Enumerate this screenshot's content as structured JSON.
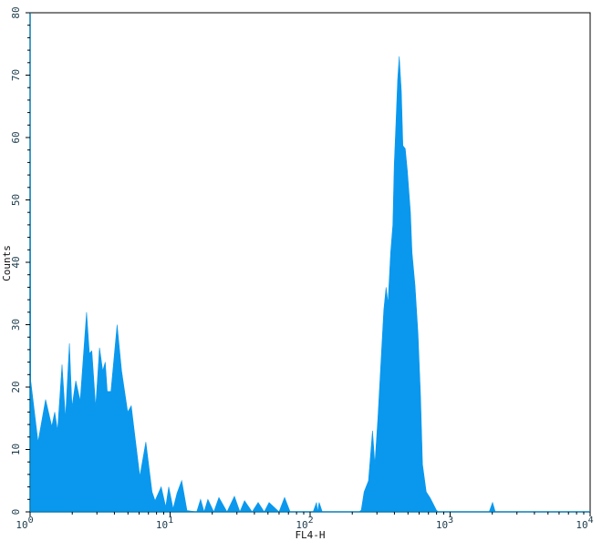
{
  "chart_data": {
    "type": "area",
    "title": "",
    "xlabel": "FL4-H",
    "ylabel": "Counts",
    "x_scale": "log",
    "xlim": [
      1,
      10000
    ],
    "ylim": [
      0,
      80
    ],
    "x_ticks": [
      {
        "base": "10",
        "exp": "0",
        "value": 1
      },
      {
        "base": "10",
        "exp": "1",
        "value": 10
      },
      {
        "base": "10",
        "exp": "2",
        "value": 100
      },
      {
        "base": "10",
        "exp": "3",
        "value": 1000
      },
      {
        "base": "10",
        "exp": "4",
        "value": 10000
      }
    ],
    "y_ticks": [
      "0",
      "10",
      "20",
      "30",
      "40",
      "50",
      "60",
      "70",
      "80"
    ],
    "grid": false,
    "fill_color": "#0a98ee",
    "series": [
      {
        "x": [
          1.0,
          1.0,
          1.01,
          1.14,
          1.29,
          1.43,
          1.5,
          1.57,
          1.69,
          1.79,
          1.91,
          1.99,
          2.12,
          2.28,
          2.53,
          2.65,
          2.76,
          2.94,
          3.13,
          3.3,
          3.44,
          3.56,
          3.78,
          4.18,
          4.5,
          4.98,
          5.28,
          5.55,
          6.08,
          6.71,
          7.43,
          7.81,
          8.63,
          9.31,
          9.78,
          10.5,
          11.2,
          12.1,
          13.2,
          15.5,
          16.5,
          17.5,
          18.6,
          20.5,
          22.3,
          25.5,
          28.8,
          31.5,
          34.0,
          38.5,
          42.5,
          47.0,
          50.9,
          60.0,
          65.7,
          72.0,
          105,
          111,
          113,
          116,
          122,
          225,
          232,
          243,
          261,
          279,
          290,
          305,
          324,
          336,
          349,
          360,
          376,
          390,
          399,
          411,
          422,
          433,
          448,
          460,
          478,
          495,
          521,
          534,
          561,
          590,
          614,
          635,
          675,
          721,
          796,
          820,
          1900,
          2010,
          2100,
          10000
        ],
        "y": [
          0,
          80,
          21,
          11.2,
          18,
          13.7,
          16,
          13,
          23.6,
          15,
          27,
          16.8,
          21,
          17.8,
          32,
          25.4,
          25.8,
          16.8,
          26.3,
          22.6,
          24,
          19.3,
          19.3,
          30,
          22.6,
          16,
          17,
          13,
          5.7,
          11.2,
          3.2,
          1.8,
          4,
          0.8,
          4,
          0.5,
          3,
          5,
          0.2,
          0,
          2,
          0,
          2,
          0,
          2.3,
          0,
          2.5,
          0,
          1.8,
          0,
          1.5,
          0,
          1.5,
          0,
          2.3,
          0,
          0,
          1.5,
          0,
          1.5,
          0,
          0,
          0.3,
          3.2,
          5,
          13,
          7.6,
          15,
          26,
          32.4,
          36,
          33.4,
          41.6,
          46,
          55.5,
          62.6,
          69.3,
          73,
          67.4,
          58.7,
          58.2,
          54.7,
          48,
          41.6,
          36.3,
          28.5,
          18.8,
          7.6,
          3.2,
          2.2,
          0.3,
          0,
          0,
          1.5,
          0,
          0
        ]
      }
    ]
  }
}
